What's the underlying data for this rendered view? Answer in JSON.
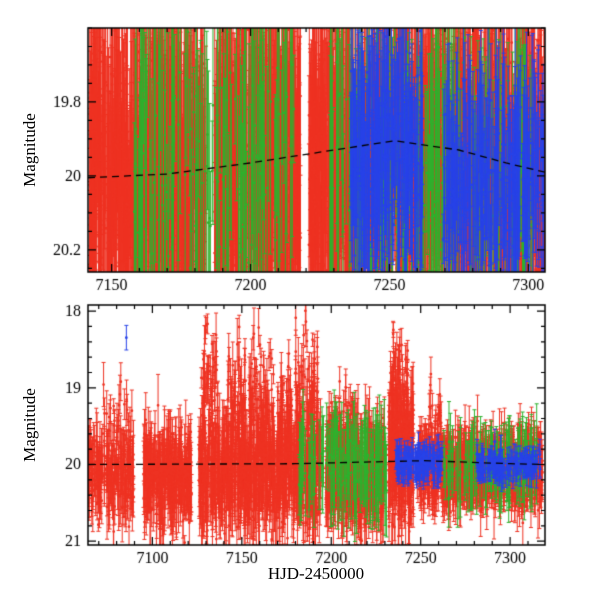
{
  "figure": {
    "background": "#ffffff",
    "frame_color": "#000000",
    "tick_label_color": "#000000"
  },
  "chart_data": {
    "type": "scatter",
    "description": "Two-panel astronomical light curve: magnitude vs HJD-2450000 with red, green and blue survey points with vertical error bars and a dashed black model curve near magnitude 20. Top panel is a zoom of the bottom panel.",
    "seed": 20107,
    "point_colors": {
      "red": "#ee3222",
      "green": "#2db22d",
      "blue": "#2742e8"
    },
    "panels": [
      {
        "name": "top-zoom",
        "xlim": [
          7141.5,
          7306
        ],
        "ylim": [
          19.6,
          20.26
        ],
        "y_axis_inverted_magnitude": true,
        "xticks": [
          7150,
          7200,
          7250,
          7300
        ],
        "xtick_labels": [
          "7150",
          "7200",
          "7250",
          "7300"
        ],
        "xminor": 10,
        "yticks": [
          19.8,
          20.0,
          20.2
        ],
        "ytick_labels": [
          "19.8",
          "20",
          "20.2"
        ],
        "yminor": 0.05,
        "ylabel": "Magnitude",
        "xlabel": "",
        "model_curve": {
          "color": "#000000",
          "dash": [
            7,
            5
          ],
          "points": [
            [
              7141.5,
              20.005
            ],
            [
              7170,
              19.995
            ],
            [
              7200,
              19.965
            ],
            [
              7230,
              19.93
            ],
            [
              7252,
              19.905
            ],
            [
              7275,
              19.93
            ],
            [
              7292,
              19.965
            ],
            [
              7306,
              19.99
            ]
          ]
        },
        "series": [
          {
            "name": "survey-1-red",
            "color": "#ee3222",
            "groups": [
              {
                "x0": 7142,
                "x1": 7184,
                "n": 800,
                "y": 20.0,
                "sy": 0.17,
                "emin": 0.08,
                "emax": 0.38
              },
              {
                "x0": 7187,
                "x1": 7218,
                "n": 600,
                "y": 19.99,
                "sy": 0.17,
                "emin": 0.08,
                "emax": 0.38
              },
              {
                "x0": 7221,
                "x1": 7306,
                "n": 1600,
                "y": 19.98,
                "sy": 0.17,
                "emin": 0.07,
                "emax": 0.36
              }
            ]
          },
          {
            "name": "survey-2-green",
            "color": "#2db22d",
            "groups": [
              {
                "x0": 7158,
                "x1": 7216,
                "n": 170,
                "y": 19.97,
                "sy": 0.18,
                "emin": 0.12,
                "emax": 0.5
              },
              {
                "x0": 7228,
                "x1": 7302,
                "n": 220,
                "y": 19.98,
                "sy": 0.16,
                "emin": 0.12,
                "emax": 0.45
              }
            ]
          },
          {
            "name": "survey-3-blue",
            "color": "#2742e8",
            "groups": [
              {
                "x0": 7236,
                "x1": 7262,
                "n": 280,
                "y": 19.94,
                "sy": 0.13,
                "emin": 0.06,
                "emax": 0.28
              },
              {
                "x0": 7269,
                "x1": 7306,
                "n": 280,
                "y": 20.0,
                "sy": 0.11,
                "emin": 0.06,
                "emax": 0.25
              }
            ]
          }
        ]
      },
      {
        "name": "bottom-full",
        "xlim": [
          7064,
          7319.5
        ],
        "ylim": [
          17.92,
          21.05
        ],
        "y_axis_inverted_magnitude": true,
        "xticks": [
          7100,
          7150,
          7200,
          7250,
          7300
        ],
        "xtick_labels": [
          "7100",
          "7150",
          "7200",
          "7250",
          "7300"
        ],
        "xminor": 10,
        "yticks": [
          18,
          19,
          20,
          21
        ],
        "ytick_labels": [
          "18",
          "19",
          "20",
          "21"
        ],
        "yminor": 0.2,
        "ylabel": "Magnitude",
        "xlabel": "HJD-2450000",
        "model_curve": {
          "color": "#000000",
          "dash": [
            7,
            5
          ],
          "points": [
            [
              7064,
              20.0
            ],
            [
              7180,
              19.99
            ],
            [
              7252,
              19.95
            ],
            [
              7300,
              19.99
            ],
            [
              7319.5,
              20.0
            ]
          ]
        },
        "series": [
          {
            "name": "survey-1-red",
            "color": "#ee3222",
            "groups": [
              {
                "x0": 7064,
                "x1": 7090,
                "n": 220,
                "y": 20.12,
                "sy": 0.25,
                "emin": 0.08,
                "emax": 0.45
              },
              {
                "x0": 7072,
                "x1": 7086,
                "n": 22,
                "y": 19.35,
                "sy": 0.3,
                "emin": 0.08,
                "emax": 0.3
              },
              {
                "x0": 7095,
                "x1": 7122,
                "n": 330,
                "y": 20.15,
                "sy": 0.28,
                "emin": 0.08,
                "emax": 0.5
              },
              {
                "x0": 7126,
                "x1": 7194,
                "n": 750,
                "y": 20.1,
                "sy": 0.33,
                "emin": 0.1,
                "emax": 0.55
              },
              {
                "x0": 7127,
                "x1": 7137,
                "n": 60,
                "y": 19.0,
                "sy": 0.45,
                "ymin": 17.98,
                "emin": 0.08,
                "emax": 0.35
              },
              {
                "x0": 7142,
                "x1": 7152,
                "n": 75,
                "y": 19.25,
                "sy": 0.4,
                "ymin": 18.1,
                "emin": 0.08,
                "emax": 0.35
              },
              {
                "x0": 7154,
                "x1": 7168,
                "n": 85,
                "y": 19.3,
                "sy": 0.45,
                "ymin": 18.2,
                "emin": 0.08,
                "emax": 0.35
              },
              {
                "x0": 7170,
                "x1": 7178,
                "n": 55,
                "y": 19.45,
                "sy": 0.35,
                "emin": 0.08,
                "emax": 0.35
              },
              {
                "x0": 7180,
                "x1": 7193,
                "n": 85,
                "y": 19.1,
                "sy": 0.5,
                "ymin": 17.98,
                "emin": 0.08,
                "emax": 0.35
              },
              {
                "x0": 7197,
                "x1": 7230,
                "n": 520,
                "y": 20.08,
                "sy": 0.3,
                "emin": 0.1,
                "emax": 0.5
              },
              {
                "x0": 7200,
                "x1": 7212,
                "n": 35,
                "y": 19.5,
                "sy": 0.3,
                "emin": 0.08,
                "emax": 0.3
              },
              {
                "x0": 7232,
                "x1": 7246,
                "n": 260,
                "y": 19.85,
                "sy": 0.45,
                "emin": 0.1,
                "emax": 0.5
              },
              {
                "x0": 7233,
                "x1": 7243,
                "n": 55,
                "y": 18.9,
                "sy": 0.4,
                "ymin": 18.1,
                "emin": 0.08,
                "emax": 0.3
              },
              {
                "x0": 7248,
                "x1": 7318,
                "n": 950,
                "y": 20.05,
                "sy": 0.2,
                "emin": 0.08,
                "emax": 0.4
              },
              {
                "x0": 7254,
                "x1": 7262,
                "n": 25,
                "y": 19.45,
                "sy": 0.25,
                "emin": 0.08,
                "emax": 0.3
              }
            ]
          },
          {
            "name": "survey-2-green",
            "color": "#2db22d",
            "groups": [
              {
                "x0": 7181,
                "x1": 7231,
                "n": 130,
                "y": 20.0,
                "sy": 0.17,
                "emin": 0.2,
                "emax": 0.7
              },
              {
                "x0": 7263,
                "x1": 7315,
                "n": 110,
                "y": 20.0,
                "sy": 0.14,
                "emin": 0.18,
                "emax": 0.6
              },
              {
                "x0": 7196,
                "x1": 7208,
                "n": 6,
                "y": 19.55,
                "sy": 0.2,
                "emin": 0.2,
                "emax": 0.4
              }
            ]
          },
          {
            "name": "survey-3-blue",
            "color": "#2742e8",
            "groups": [
              {
                "x0": 7236,
                "x1": 7262,
                "n": 170,
                "y": 19.97,
                "sy": 0.1,
                "emin": 0.05,
                "emax": 0.22
              },
              {
                "x0": 7281,
                "x1": 7317,
                "n": 170,
                "y": 20.0,
                "sy": 0.08,
                "emin": 0.05,
                "emax": 0.2
              },
              {
                "x0": 7084,
                "x1": 7086,
                "n": 1,
                "y": 18.35,
                "sy": 0.01,
                "emin": 0.15,
                "emax": 0.2
              }
            ]
          }
        ]
      }
    ]
  }
}
